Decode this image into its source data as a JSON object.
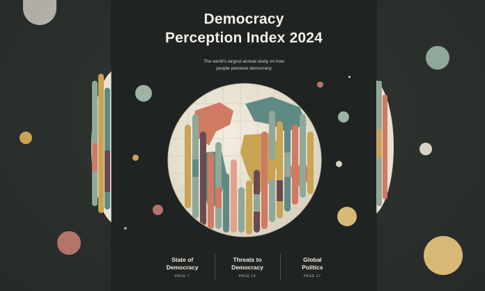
{
  "cover": {
    "title_line1": "Democracy",
    "title_line2": "Perception Index 2024",
    "subtitle_line1": "The world's largest annual study on how",
    "subtitle_line2": "people perceive democracy"
  },
  "sections": [
    {
      "title_line1": "State of",
      "title_line2": "Democracy",
      "page": "PAGE 7"
    },
    {
      "title_line1": "Threats to",
      "title_line2": "Democracy",
      "page": "PAGE 14"
    },
    {
      "title_line1": "Global",
      "title_line2": "Politics",
      "page": "PAGE 27"
    }
  ],
  "colors": {
    "background": "#2b302d",
    "cover": "#1f2422",
    "title": "#f4efe6",
    "sage": "#8fa89a",
    "teal": "#5f8a84",
    "coral": "#cf7a63",
    "mustard": "#c9a453",
    "cream": "#e9e3d3",
    "plum": "#6a4a4f"
  },
  "icons": [
    "globe-illustration",
    "decorative-dots"
  ]
}
